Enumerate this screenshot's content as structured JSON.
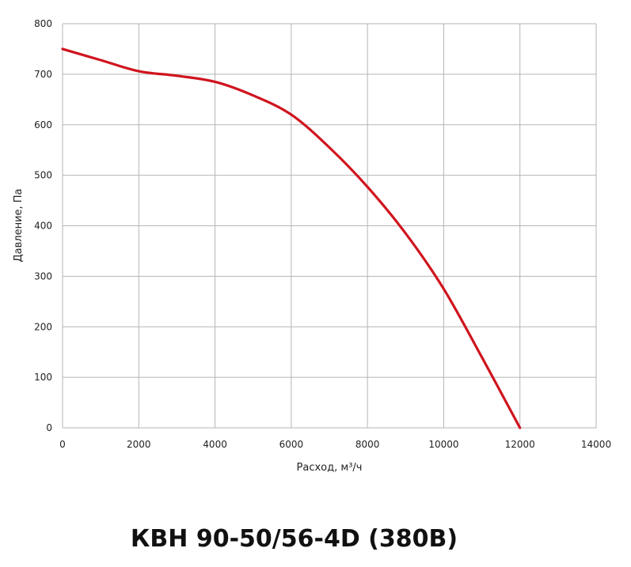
{
  "title": "КВН 90-50/56-4D (380В)",
  "chart_data": {
    "type": "line",
    "xlabel": "Расход, м³/ч",
    "ylabel": "Давление, Па",
    "xlim": [
      0,
      14000
    ],
    "ylim": [
      0,
      800
    ],
    "xticks": [
      0,
      2000,
      4000,
      6000,
      8000,
      10000,
      12000,
      14000
    ],
    "yticks": [
      0,
      100,
      200,
      300,
      400,
      500,
      600,
      700,
      800
    ],
    "grid": true,
    "series": [
      {
        "color": "#d0141e",
        "x": [
          0,
          1000,
          2000,
          3000,
          4000,
          5000,
          6000,
          7000,
          8000,
          9000,
          10000,
          11000,
          12000
        ],
        "y": [
          750,
          728,
          706,
          697,
          685,
          658,
          620,
          555,
          477,
          385,
          275,
          140,
          0
        ]
      }
    ]
  }
}
